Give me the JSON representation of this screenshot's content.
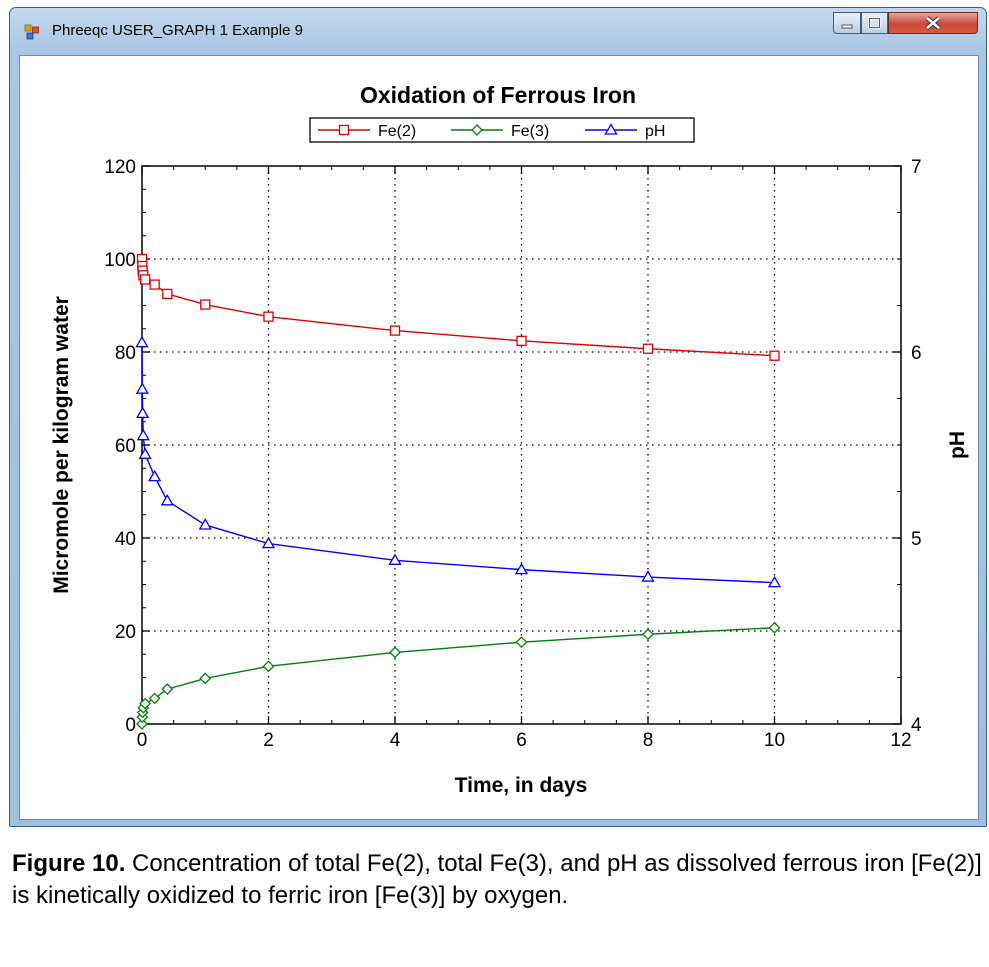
{
  "window": {
    "title": "Phreeqc USER_GRAPH 1 Example 9",
    "buttons": [
      "minimize",
      "maximize",
      "close"
    ]
  },
  "caption": {
    "label": "Figure 10.",
    "text": " Concentration of total Fe(2), total Fe(3), and pH as dissolved ferrous iron [Fe(2)] is kinetically oxidized to ferric iron [Fe(3)] by oxygen."
  },
  "chart_data": {
    "type": "line",
    "title": "Oxidation of Ferrous Iron",
    "xlabel": "Time, in days",
    "ylabel": "Micromole per kilogram water",
    "y2label": "pH",
    "xlim": [
      0,
      12
    ],
    "ylim": [
      0,
      120
    ],
    "y2lim": [
      4,
      7
    ],
    "xticks": [
      "0",
      "2",
      "4",
      "6",
      "8",
      "10",
      "12"
    ],
    "yticks": [
      "0",
      "20",
      "40",
      "60",
      "80",
      "100",
      "120"
    ],
    "y2ticks": [
      "4",
      "5",
      "6",
      "7"
    ],
    "grid": true,
    "legend_position": "top-center",
    "series": [
      {
        "name": "Fe(2)",
        "axis": "left",
        "color": "#e00000",
        "marker": "square",
        "x": [
          0,
          0.005,
          0.01,
          0.02,
          0.05,
          0.2,
          0.4,
          1,
          2,
          4,
          6,
          8,
          10
        ],
        "y": [
          100,
          98.5,
          97.5,
          96.5,
          95.6,
          94.5,
          92.5,
          90.2,
          87.6,
          84.6,
          82.4,
          80.7,
          79.2
        ]
      },
      {
        "name": "Fe(3)",
        "axis": "left",
        "color": "#00800a",
        "marker": "diamond",
        "x": [
          0,
          0.005,
          0.01,
          0.02,
          0.05,
          0.2,
          0.4,
          1,
          2,
          4,
          6,
          8,
          10
        ],
        "y": [
          0,
          1.5,
          2.5,
          3.5,
          4.4,
          5.5,
          7.5,
          9.8,
          12.4,
          15.4,
          17.6,
          19.3,
          20.7
        ]
      },
      {
        "name": "pH",
        "axis": "right",
        "color": "#0000ff",
        "marker": "triangle",
        "x": [
          0,
          0.005,
          0.01,
          0.02,
          0.05,
          0.2,
          0.4,
          1,
          2,
          4,
          6,
          8,
          10
        ],
        "y": [
          6.05,
          5.8,
          5.67,
          5.55,
          5.45,
          5.33,
          5.2,
          5.07,
          4.97,
          4.88,
          4.83,
          4.79,
          4.76
        ]
      }
    ]
  }
}
